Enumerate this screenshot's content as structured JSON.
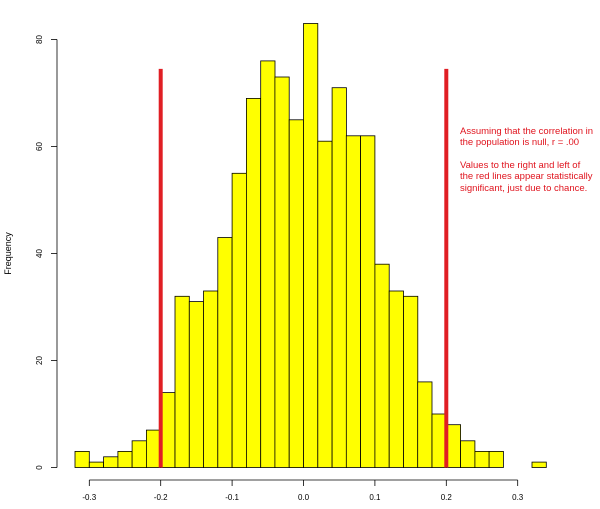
{
  "chart_data": {
    "type": "bar",
    "title": "",
    "xlabel": "",
    "ylabel": "Frequency",
    "xlim": [
      -0.33,
      0.34
    ],
    "ylim": [
      0,
      83
    ],
    "x_ticks": [
      -0.3,
      -0.2,
      -0.1,
      0.0,
      0.1,
      0.2,
      0.3
    ],
    "x_tick_labels": [
      "-0.3",
      "-0.2",
      "-0.1",
      "0.0",
      "0.1",
      "0.2",
      "0.3"
    ],
    "y_ticks": [
      0,
      20,
      40,
      60,
      80
    ],
    "y_tick_labels": [
      "0",
      "20",
      "40",
      "60",
      "80"
    ],
    "bin_width": 0.02,
    "bin_starts": [
      -0.32,
      -0.3,
      -0.28,
      -0.26,
      -0.24,
      -0.22,
      -0.2,
      -0.18,
      -0.16,
      -0.14,
      -0.12,
      -0.1,
      -0.08,
      -0.06,
      -0.04,
      -0.02,
      0.0,
      0.02,
      0.04,
      0.06,
      0.08,
      0.1,
      0.12,
      0.14,
      0.16,
      0.18,
      0.2,
      0.22,
      0.24,
      0.26,
      0.28,
      0.3,
      0.32
    ],
    "values": [
      3,
      1,
      2,
      3,
      5,
      7,
      14,
      32,
      31,
      33,
      43,
      55,
      69,
      76,
      73,
      65,
      83,
      61,
      71,
      62,
      62,
      38,
      33,
      32,
      16,
      10,
      8,
      5,
      3,
      3,
      0,
      0,
      1
    ],
    "bar_color": "#ffff00",
    "bar_edge_color": "#000000",
    "reference_lines": [
      {
        "x": -0.2,
        "y_top": 74.5,
        "color": "#e01e24"
      },
      {
        "x": 0.2,
        "y_top": 74.5,
        "color": "#e01e24"
      }
    ],
    "annotations": [
      "Assuming that the correlation in the population is null, r = .00",
      "Values to the right and left of the red lines appear statistically significant, just due to chance."
    ],
    "grid": false,
    "legend": "none"
  }
}
